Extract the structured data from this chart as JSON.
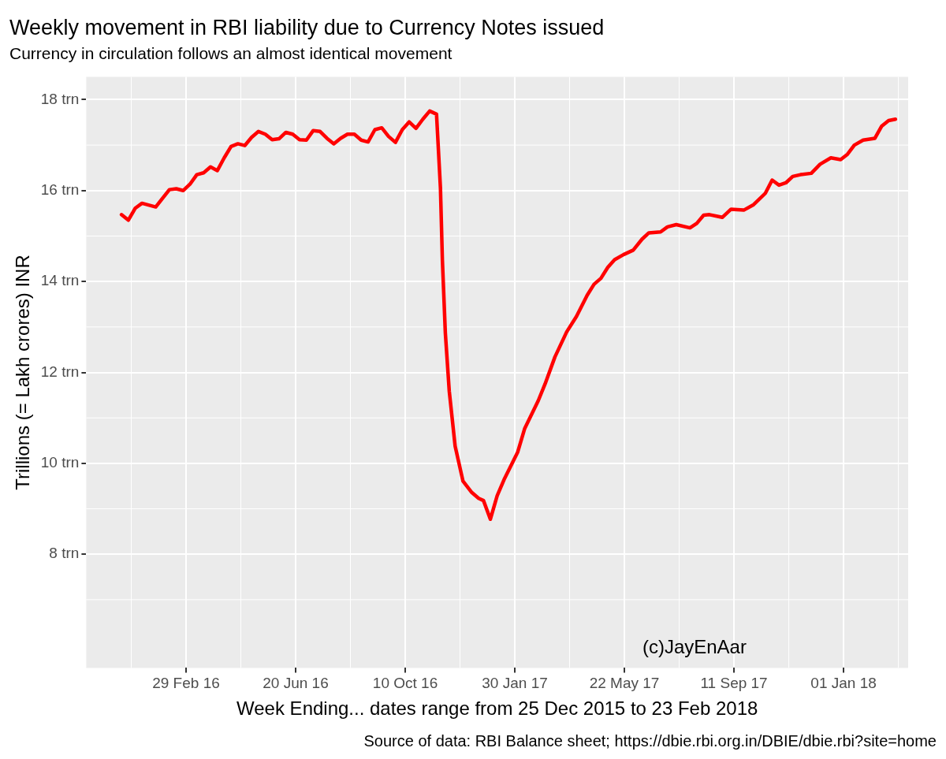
{
  "chart_data": {
    "type": "line",
    "title": "Weekly movement in RBI liability due to Currency Notes issued",
    "subtitle": "Currency in circulation follows an almost identical movement",
    "xlabel": "Week Ending... dates range from 25 Dec 2015 to 23 Feb 2018",
    "ylabel": "Trillions (= Lakh crores) INR",
    "annotations": [
      "(c)JayEnAar",
      "Source of data: RBI Balance sheet; https://dbie.rbi.org.in/DBIE/dbie.rbi?site=home"
    ],
    "x": [
      "2015-12-25",
      "2016-01-01",
      "2016-01-08",
      "2016-01-15",
      "2016-01-29",
      "2016-02-12",
      "2016-02-19",
      "2016-02-26",
      "2016-03-04",
      "2016-03-11",
      "2016-03-18",
      "2016-03-25",
      "2016-04-01",
      "2016-04-08",
      "2016-04-15",
      "2016-04-22",
      "2016-04-29",
      "2016-05-06",
      "2016-05-13",
      "2016-05-20",
      "2016-05-27",
      "2016-06-03",
      "2016-06-10",
      "2016-06-17",
      "2016-06-24",
      "2016-07-01",
      "2016-07-08",
      "2016-07-15",
      "2016-07-22",
      "2016-07-29",
      "2016-08-05",
      "2016-08-12",
      "2016-08-19",
      "2016-08-26",
      "2016-09-02",
      "2016-09-09",
      "2016-09-16",
      "2016-09-23",
      "2016-09-30",
      "2016-10-07",
      "2016-10-14",
      "2016-10-21",
      "2016-10-28",
      "2016-11-04",
      "2016-11-11",
      "2016-11-15",
      "2016-11-17",
      "2016-11-20",
      "2016-11-24",
      "2016-11-30",
      "2016-12-08",
      "2016-12-17",
      "2016-12-24",
      "2016-12-29",
      "2017-01-05",
      "2017-01-12",
      "2017-01-19",
      "2017-02-02",
      "2017-02-09",
      "2017-02-23",
      "2017-03-02",
      "2017-03-12",
      "2017-03-24",
      "2017-04-03",
      "2017-04-14",
      "2017-04-21",
      "2017-04-28",
      "2017-05-05",
      "2017-05-12",
      "2017-05-21",
      "2017-05-31",
      "2017-06-09",
      "2017-06-16",
      "2017-06-28",
      "2017-07-05",
      "2017-07-14",
      "2017-07-28",
      "2017-08-04",
      "2017-08-11",
      "2017-08-17",
      "2017-08-30",
      "2017-09-08",
      "2017-09-21",
      "2017-10-01",
      "2017-10-13",
      "2017-10-20",
      "2017-10-27",
      "2017-11-03",
      "2017-11-10",
      "2017-11-18",
      "2017-11-29",
      "2017-12-08",
      "2017-12-19",
      "2017-12-29",
      "2018-01-05",
      "2018-01-12",
      "2018-01-21",
      "2018-02-02",
      "2018-02-09",
      "2018-02-16",
      "2018-02-23"
    ],
    "series": [
      {
        "color": "#ff0000",
        "values": [
          15.47,
          15.35,
          15.61,
          15.72,
          15.64,
          16.02,
          16.04,
          16.0,
          16.14,
          16.35,
          16.39,
          16.52,
          16.44,
          16.72,
          16.97,
          17.03,
          16.99,
          17.17,
          17.3,
          17.24,
          17.12,
          17.14,
          17.28,
          17.24,
          17.12,
          17.11,
          17.32,
          17.3,
          17.15,
          17.03,
          17.15,
          17.24,
          17.24,
          17.11,
          17.07,
          17.34,
          17.38,
          17.19,
          17.06,
          17.34,
          17.51,
          17.37,
          17.57,
          17.75,
          17.68,
          16.06,
          14.46,
          12.87,
          11.59,
          10.38,
          9.61,
          9.36,
          9.23,
          9.18,
          8.77,
          9.29,
          9.64,
          10.25,
          10.76,
          11.38,
          11.75,
          12.34,
          12.89,
          13.23,
          13.7,
          13.94,
          14.07,
          14.31,
          14.48,
          14.59,
          14.69,
          14.93,
          15.07,
          15.09,
          15.2,
          15.25,
          15.18,
          15.28,
          15.46,
          15.47,
          15.41,
          15.59,
          15.57,
          15.69,
          15.94,
          16.23,
          16.12,
          16.17,
          16.31,
          16.35,
          16.38,
          16.58,
          16.72,
          16.68,
          16.8,
          17.0,
          17.11,
          17.15,
          17.42,
          17.54,
          17.57
        ]
      }
    ],
    "xlim": [
      "2015-11-19",
      "2018-03-08"
    ],
    "xticks": [
      {
        "value": "2016-02-29",
        "label": "29 Feb 16"
      },
      {
        "value": "2016-06-20",
        "label": "20 Jun 16"
      },
      {
        "value": "2016-10-10",
        "label": "10 Oct 16"
      },
      {
        "value": "2017-01-30",
        "label": "30 Jan 17"
      },
      {
        "value": "2017-05-22",
        "label": "22 May 17"
      },
      {
        "value": "2017-09-11",
        "label": "11 Sep 17"
      },
      {
        "value": "2018-01-01",
        "label": "01 Jan 18"
      }
    ],
    "ylim": [
      5.5,
      18.5
    ],
    "yticks": [
      {
        "value": 8,
        "label": "8 trn"
      },
      {
        "value": 10,
        "label": "10 trn"
      },
      {
        "value": 12,
        "label": "12 trn"
      },
      {
        "value": 14,
        "label": "14 trn"
      },
      {
        "value": 16,
        "label": "16 trn"
      },
      {
        "value": 18,
        "label": "18 trn"
      }
    ],
    "grid": true,
    "legend": false,
    "marker": "none",
    "line_style": "solid"
  }
}
